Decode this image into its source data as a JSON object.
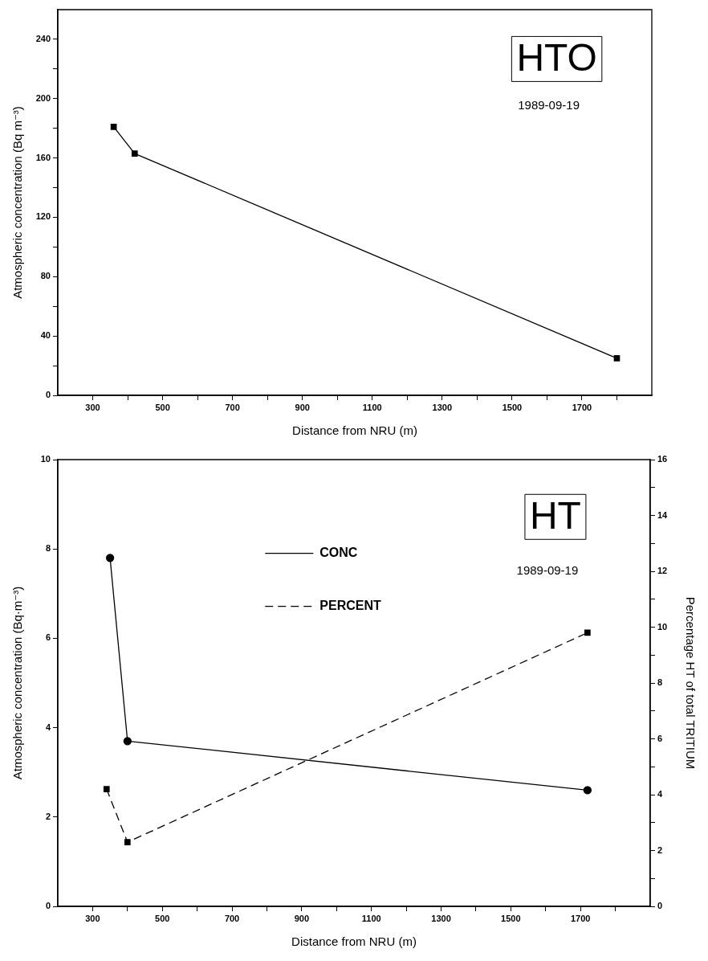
{
  "chart_data": [
    {
      "type": "line",
      "xlabel": "Distance from NRU (m)",
      "ylabel": "Atmospheric concentration (Bq m⁻³)",
      "annotations": [
        "HTO",
        "1989-09-19"
      ],
      "x": [
        360,
        420,
        1800
      ],
      "series": [
        {
          "color": "#000000",
          "values": [
            181,
            163,
            25
          ]
        }
      ],
      "xlim": [
        200,
        1900
      ],
      "xticks": [
        300,
        {
          "value": 400,
          "label": null
        },
        500,
        {
          "value": 600,
          "label": null
        },
        700,
        {
          "value": 800,
          "label": null
        },
        900,
        {
          "value": 1000,
          "label": null
        },
        1100,
        {
          "value": 1200,
          "label": null
        },
        1300,
        {
          "value": 1400,
          "label": null
        },
        1500,
        {
          "value": 1600,
          "label": null
        },
        1700,
        {
          "value": 1800,
          "label": null
        }
      ],
      "ylim": [
        0,
        260
      ],
      "yticks": [
        0,
        {
          "value": 20,
          "label": null
        },
        40,
        {
          "value": 60,
          "label": null
        },
        80,
        {
          "value": 100,
          "label": null
        },
        120,
        {
          "value": 140,
          "label": null
        },
        160,
        {
          "value": 180,
          "label": null
        },
        200,
        {
          "value": 220,
          "label": null
        },
        240
      ],
      "grid": false,
      "legend": false,
      "marker": "square",
      "line_style": "solid"
    },
    {
      "type": "line",
      "xlabel": "Distance from NRU (m)",
      "ylabel": "Atmospheric concentration (Bq·m⁻³)",
      "y2label": "Percentage HT of total TRITIUM",
      "annotations": [
        "HT",
        "1989-09-19"
      ],
      "series": [
        {
          "name": "CONC",
          "color": "#000000",
          "x": [
            350,
            400,
            1720
          ],
          "values": [
            7.8,
            3.7,
            2.6
          ],
          "marker": "circle",
          "line_style": "solid"
        },
        {
          "name": "PERCENT",
          "color": "#000000",
          "x": [
            340,
            400,
            1720
          ],
          "values": [
            4.2,
            2.3,
            9.8
          ],
          "axis": "y2",
          "marker": "square",
          "line_style": "dashed"
        }
      ],
      "xlim": [
        200,
        1900
      ],
      "xticks": [
        300,
        {
          "value": 400,
          "label": null
        },
        500,
        {
          "value": 600,
          "label": null
        },
        700,
        {
          "value": 800,
          "label": null
        },
        900,
        {
          "value": 1000,
          "label": null
        },
        1100,
        {
          "value": 1200,
          "label": null
        },
        1300,
        {
          "value": 1400,
          "label": null
        },
        1500,
        {
          "value": 1600,
          "label": null
        },
        1700,
        {
          "value": 1800,
          "label": null
        }
      ],
      "ylim": [
        0,
        10
      ],
      "yticks": [
        0,
        2,
        4,
        6,
        8,
        10
      ],
      "y2lim": [
        0,
        16
      ],
      "y2ticks": [
        0,
        {
          "value": 1,
          "label": null
        },
        2,
        {
          "value": 3,
          "label": null
        },
        4,
        {
          "value": 5,
          "label": null
        },
        6,
        {
          "value": 7,
          "label": null
        },
        8,
        {
          "value": 9,
          "label": null
        },
        10,
        {
          "value": 11,
          "label": null
        },
        12,
        {
          "value": 13,
          "label": null
        },
        14,
        {
          "value": 15,
          "label": null
        },
        16
      ],
      "grid": false,
      "legend": "top"
    }
  ]
}
